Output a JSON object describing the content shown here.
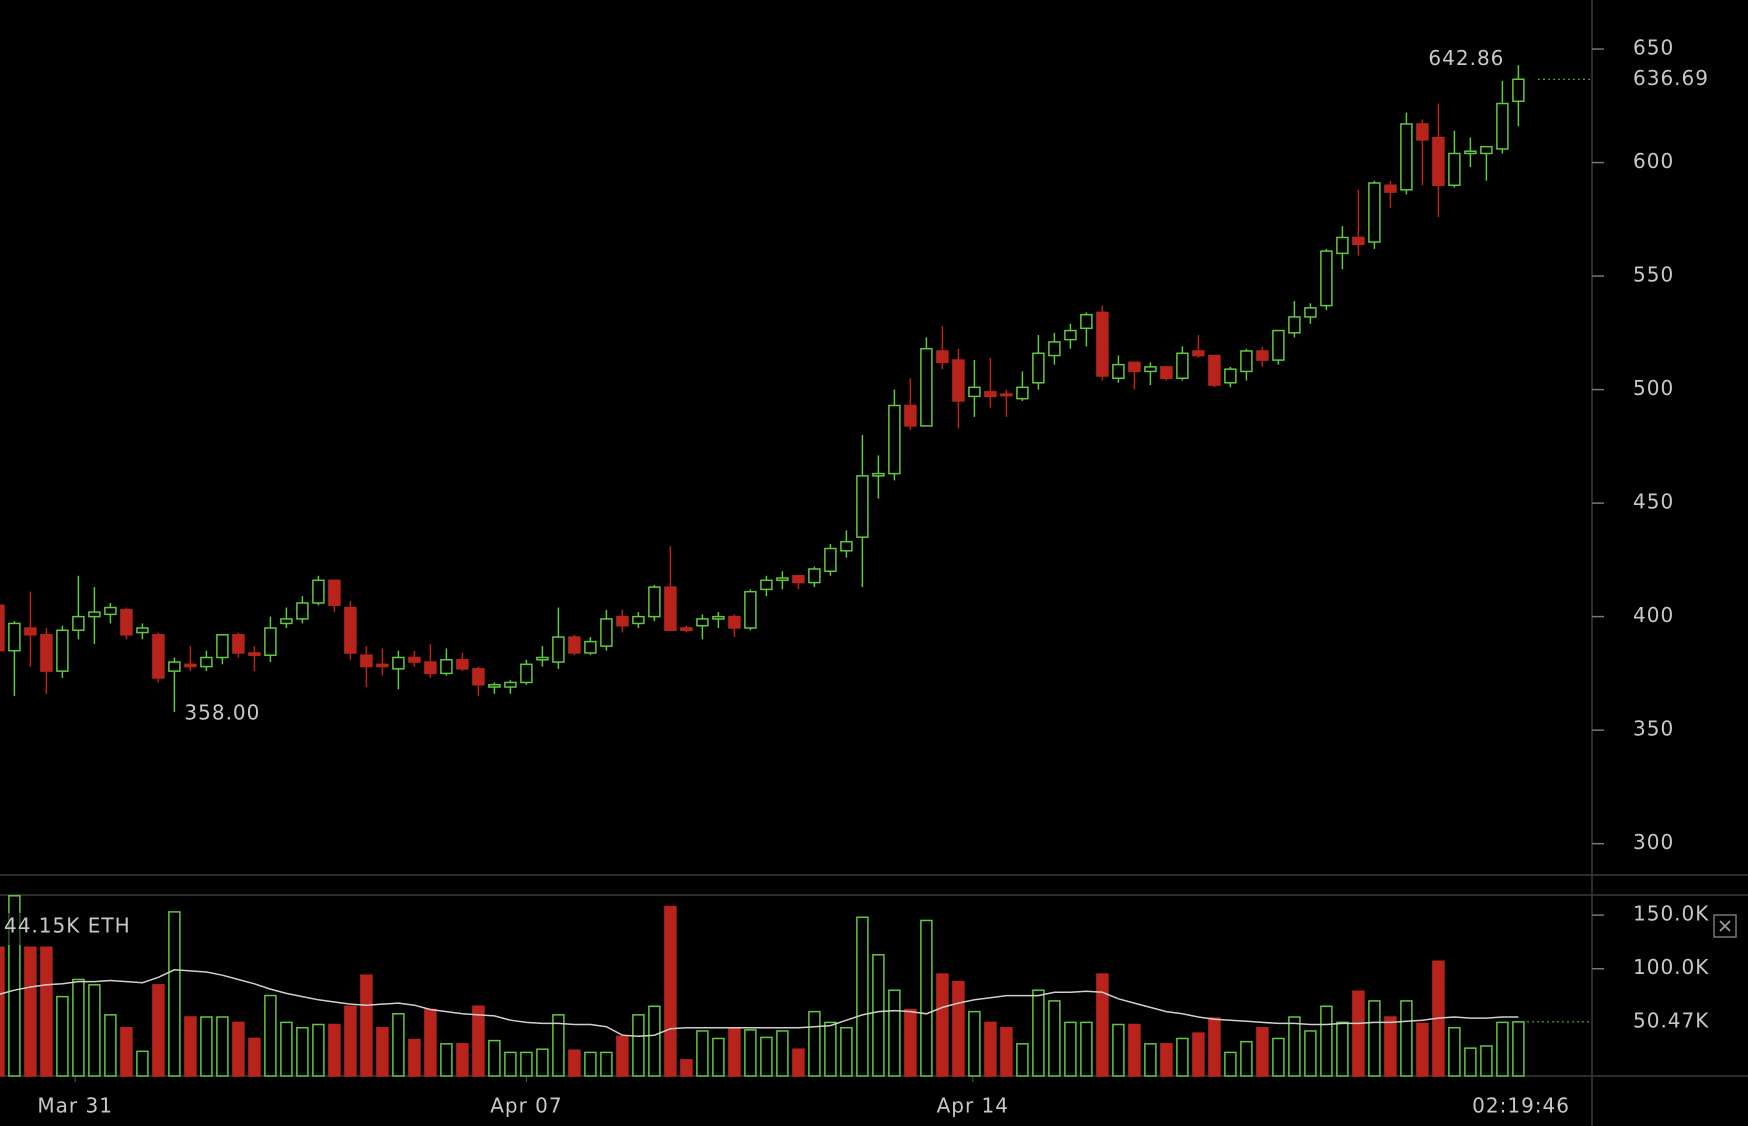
{
  "chart_data": {
    "type": "candlestick",
    "open": [
      405,
      385,
      395,
      392,
      376,
      394,
      400,
      401,
      403,
      393,
      392,
      376,
      379,
      378,
      382,
      392,
      384,
      383,
      397,
      399,
      406,
      416,
      404,
      383,
      379,
      377,
      382,
      380,
      375,
      381,
      377,
      369,
      369,
      371,
      381,
      380,
      391,
      384,
      387,
      400,
      397,
      400,
      413,
      395,
      396,
      399,
      400,
      395,
      412,
      416,
      418,
      415,
      420,
      429,
      435,
      462,
      463,
      493,
      484,
      517,
      513,
      497,
      499,
      498,
      496,
      503,
      515,
      522,
      527,
      534,
      505,
      512,
      508,
      510,
      505,
      517,
      515,
      503,
      508,
      517,
      513,
      525,
      532,
      537,
      560,
      567,
      565,
      590,
      588,
      617,
      611,
      590,
      604,
      604,
      606,
      627
    ],
    "high": [
      406,
      398,
      411,
      395,
      396,
      418,
      413,
      406,
      404,
      397,
      393,
      382,
      387,
      385,
      392,
      393,
      387,
      400,
      404,
      409,
      418,
      416,
      407,
      387,
      386,
      385,
      385,
      388,
      386,
      384,
      378,
      371,
      372,
      381,
      387,
      404,
      392,
      391,
      403,
      403,
      402,
      414,
      431,
      396,
      401,
      402,
      401,
      412,
      418,
      420,
      418,
      422,
      432,
      438,
      480,
      471,
      500,
      505,
      523,
      528,
      518,
      513,
      514,
      500,
      508,
      524,
      525,
      529,
      534,
      537,
      515,
      512,
      512,
      510,
      519,
      524,
      515,
      510,
      518,
      519,
      526,
      539,
      538,
      562,
      572,
      588,
      592,
      592,
      622,
      619,
      626,
      614,
      611,
      607,
      636,
      642.86
    ],
    "low": [
      383,
      365,
      378,
      366,
      373,
      390,
      388,
      397,
      390,
      390,
      371,
      358,
      376,
      376,
      379,
      382,
      376,
      380,
      395,
      397,
      405,
      402,
      381,
      369,
      374,
      368,
      378,
      373,
      374,
      376,
      365,
      366,
      366,
      370,
      378,
      377,
      383,
      383,
      385,
      393,
      395,
      398,
      394,
      393,
      390,
      395,
      391,
      394,
      409,
      412,
      412,
      413,
      418,
      426,
      413,
      452,
      460,
      482,
      484,
      509,
      483,
      488,
      492,
      488,
      495,
      500,
      511,
      518,
      519,
      504,
      503,
      500,
      502,
      504,
      504,
      514,
      501,
      501,
      504,
      510,
      511,
      523,
      529,
      535,
      553,
      559,
      562,
      580,
      586,
      590,
      576,
      589,
      598,
      592,
      604,
      616
    ],
    "close": [
      385,
      397,
      392,
      376,
      394,
      400,
      402,
      404,
      392,
      395,
      373,
      380,
      378,
      382,
      392,
      384,
      383,
      395,
      399,
      406,
      416,
      405,
      384,
      378,
      378,
      382,
      380,
      375,
      381,
      377,
      370,
      370,
      371,
      379,
      382,
      391,
      384,
      389,
      399,
      396,
      400,
      413,
      394,
      394,
      399,
      400,
      395,
      411,
      416,
      417,
      415,
      421,
      430,
      433,
      462,
      463,
      493,
      484,
      518,
      512,
      495,
      501,
      497,
      497.5,
      501,
      516,
      521,
      526,
      533,
      506,
      511,
      508,
      510,
      505,
      516,
      515,
      502,
      509,
      517,
      513,
      526,
      532,
      536,
      561,
      567,
      564,
      591,
      587,
      617,
      610,
      590,
      604,
      605,
      607,
      626,
      636.69
    ],
    "up_color": "#62c93c",
    "down_color": "#b8241c",
    "xlim": [
      0.1,
      99.6
    ],
    "xticks": [
      {
        "value": 4.8,
        "label": "Mar 31"
      },
      {
        "value": 33,
        "label": "Apr 07"
      },
      {
        "value": 60.9,
        "label": "Apr 14"
      }
    ],
    "ylim": [
      286.2,
      671.6
    ],
    "yticks": [
      300,
      350,
      400,
      450,
      500,
      550,
      600,
      650
    ],
    "annotations": [
      {
        "value": 642.86,
        "label": "642.86"
      },
      {
        "value": 358,
        "label": "358.00"
      }
    ],
    "last_price": {
      "value": 636.69,
      "label": "636.69"
    },
    "volume": {
      "values": [
        120,
        168,
        120,
        120,
        74,
        90,
        85,
        57,
        45,
        23,
        85,
        153,
        55,
        55,
        55,
        50,
        35,
        75,
        50,
        45,
        48,
        48,
        65,
        94,
        45,
        58,
        34,
        62,
        30,
        30,
        65,
        33,
        22,
        22,
        25,
        57,
        24,
        22,
        22,
        37,
        57,
        65,
        158,
        15,
        42,
        35,
        45,
        43,
        36,
        42,
        25,
        60,
        50,
        45,
        148,
        113,
        80,
        62,
        145,
        95,
        88,
        60,
        50,
        45,
        30,
        80,
        70,
        50,
        50,
        95,
        48,
        48,
        30,
        30,
        35,
        40,
        54,
        22,
        32,
        45,
        35,
        55,
        42,
        65,
        50,
        79,
        70,
        55,
        70,
        49,
        107,
        45,
        26,
        28,
        50,
        50.47
      ],
      "ma": [
        76,
        80,
        83,
        85,
        86,
        88,
        88,
        89,
        88,
        87,
        92,
        99,
        98,
        97,
        94,
        90,
        86,
        81,
        77,
        74,
        71,
        69,
        67,
        66,
        67,
        68,
        66,
        62,
        60,
        58,
        57,
        56,
        52,
        50,
        49,
        49,
        48,
        48,
        46,
        38,
        37,
        38,
        44,
        45,
        45,
        45,
        45,
        45,
        45,
        45,
        45,
        46,
        47,
        52,
        57,
        60,
        61,
        60,
        58,
        64,
        68,
        71,
        73,
        75,
        75,
        75,
        78,
        78,
        79,
        78,
        72,
        68,
        64,
        60,
        58,
        55,
        53,
        52,
        51,
        50,
        49,
        49,
        48,
        48,
        49,
        49,
        50,
        50,
        51,
        52,
        54,
        55,
        54,
        54,
        55,
        55
      ],
      "ma_color": "#cfcfcf",
      "ylim": [
        0,
        168.75
      ],
      "yticks": [
        {
          "value": 100,
          "label": "100.0K"
        },
        {
          "value": 150,
          "label": "150.0K"
        }
      ],
      "last": {
        "value": 50.47,
        "label": "50.47K"
      },
      "label": "44.15K ETH"
    },
    "clock": "02:19:46"
  }
}
